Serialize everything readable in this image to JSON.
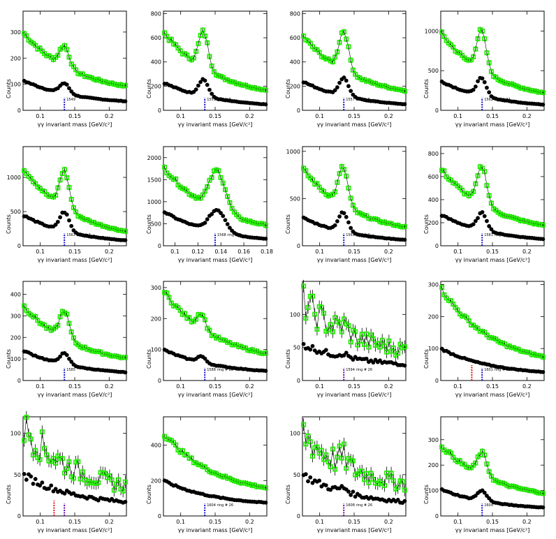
{
  "chart_data": [
    {
      "type": "scatter",
      "xlabel": "γγ invariant mass [GeV/c²]",
      "ylabel": "Counts",
      "xlim": [
        0.075,
        0.225
      ],
      "ylim": [
        0,
        380
      ],
      "xticks": [
        0.1,
        0.15,
        0.2
      ],
      "yticks": [
        0,
        100,
        200,
        300
      ],
      "peak": 0.135,
      "green": {
        "base": 300,
        "tail": 60,
        "amp": 80,
        "width": 0.007
      },
      "black": {
        "base": 115,
        "tail": 22,
        "amp": 40,
        "width": 0.007
      },
      "marker_label": "1549",
      "noisy": false,
      "red_marker": null
    },
    {
      "type": "scatter",
      "xlabel": "γγ invariant mass [GeV/c²]",
      "ylabel": "Counts",
      "xlim": [
        0.075,
        0.225
      ],
      "ylim": [
        0,
        820
      ],
      "xticks": [
        0.1,
        0.15,
        0.2
      ],
      "yticks": [
        0,
        200,
        400,
        600,
        800
      ],
      "peak": 0.133,
      "green": {
        "base": 650,
        "tail": 90,
        "amp": 300,
        "width": 0.007
      },
      "black": {
        "base": 230,
        "tail": 20,
        "amp": 140,
        "width": 0.007
      },
      "marker_label": "1555 ring # 0",
      "noisy": false,
      "red_marker": null
    },
    {
      "type": "scatter",
      "xlabel": "γγ invariant mass [GeV/c²]",
      "ylabel": "Counts",
      "xlim": [
        0.075,
        0.225
      ],
      "ylim": [
        0,
        820
      ],
      "xticks": [
        0.1,
        0.15,
        0.2
      ],
      "yticks": [
        0,
        200,
        400,
        600,
        800
      ],
      "peak": 0.135,
      "green": {
        "base": 620,
        "tail": 90,
        "amp": 330,
        "width": 0.007
      },
      "black": {
        "base": 240,
        "tail": 20,
        "amp": 150,
        "width": 0.007
      },
      "marker_label": "1557 ring # 9",
      "noisy": false,
      "red_marker": null
    },
    {
      "type": "scatter",
      "xlabel": "γγ invariant mass [GeV/c²]",
      "ylabel": "Counts",
      "xlim": [
        0.075,
        0.225
      ],
      "ylim": [
        0,
        1250
      ],
      "xticks": [
        0.1,
        0.15,
        0.2
      ],
      "yticks": [
        0,
        500,
        1000
      ],
      "peak": 0.134,
      "green": {
        "base": 980,
        "tail": 100,
        "amp": 500,
        "width": 0.007
      },
      "black": {
        "base": 370,
        "tail": 25,
        "amp": 220,
        "width": 0.007
      },
      "marker_label": "1562 ring # 11",
      "noisy": false,
      "red_marker": null
    },
    {
      "type": "scatter",
      "xlabel": "γγ invariant mass [GeV/c²]",
      "ylabel": "Counts",
      "xlim": [
        0.075,
        0.225
      ],
      "ylim": [
        0,
        1450
      ],
      "xticks": [
        0.1,
        0.15,
        0.2
      ],
      "yticks": [
        0,
        500,
        1000
      ],
      "peak": 0.135,
      "green": {
        "base": 1150,
        "tail": 60,
        "amp": 550,
        "width": 0.007
      },
      "black": {
        "base": 450,
        "tail": 20,
        "amp": 280,
        "width": 0.007
      },
      "marker_label": "1563 ring # 2",
      "noisy": false,
      "red_marker": null
    },
    {
      "type": "scatter",
      "xlabel": "γγ invariant mass [GeV/c²]",
      "ylabel": "Counts",
      "xlim": [
        0.09,
        0.18
      ],
      "ylim": [
        0,
        2250
      ],
      "xticks": [
        0.1,
        0.12,
        0.14,
        0.16,
        0.18
      ],
      "yticks": [
        0,
        500,
        1000,
        1500,
        2000
      ],
      "peak": 0.137,
      "green": {
        "base": 1800,
        "tail": 260,
        "amp": 900,
        "width": 0.007
      },
      "black": {
        "base": 780,
        "tail": 60,
        "amp": 500,
        "width": 0.007
      },
      "marker_label": "1568 ring # 2",
      "noisy": false,
      "red_marker": null
    },
    {
      "type": "scatter",
      "xlabel": "γγ invariant mass [GeV/c²]",
      "ylabel": "Counts",
      "xlim": [
        0.075,
        0.225
      ],
      "ylim": [
        0,
        1050
      ],
      "xticks": [
        0.1,
        0.15,
        0.2
      ],
      "yticks": [
        0,
        500,
        1000
      ],
      "peak": 0.134,
      "green": {
        "base": 820,
        "tail": 100,
        "amp": 400,
        "width": 0.007
      },
      "black": {
        "base": 300,
        "tail": 25,
        "amp": 200,
        "width": 0.007
      },
      "marker_label": "1569 ring # 9",
      "noisy": false,
      "red_marker": null
    },
    {
      "type": "scatter",
      "xlabel": "γγ invariant mass [GeV/c²]",
      "ylabel": "Counts",
      "xlim": [
        0.075,
        0.225
      ],
      "ylim": [
        0,
        860
      ],
      "xticks": [
        0.1,
        0.15,
        0.2
      ],
      "yticks": [
        0,
        200,
        400,
        600,
        800
      ],
      "peak": 0.135,
      "green": {
        "base": 670,
        "tail": 100,
        "amp": 330,
        "width": 0.007
      },
      "black": {
        "base": 270,
        "tail": 25,
        "amp": 150,
        "width": 0.007
      },
      "marker_label": "1581 ring # 14",
      "noisy": false,
      "red_marker": null
    },
    {
      "type": "scatter",
      "xlabel": "γγ invariant mass [GeV/c²]",
      "ylabel": "Counts",
      "xlim": [
        0.075,
        0.225
      ],
      "ylim": [
        0,
        460
      ],
      "xticks": [
        0.1,
        0.15,
        0.2
      ],
      "yticks": [
        0,
        100,
        200,
        300,
        400
      ],
      "peak": 0.135,
      "green": {
        "base": 350,
        "tail": 65,
        "amp": 130,
        "width": 0.007
      },
      "black": {
        "base": 140,
        "tail": 22,
        "amp": 50,
        "width": 0.007
      },
      "marker_label": "1585",
      "noisy": false,
      "red_marker": null
    },
    {
      "type": "scatter",
      "xlabel": "γγ invariant mass [GeV/c²]",
      "ylabel": "Counts",
      "xlim": [
        0.075,
        0.225
      ],
      "ylim": [
        0,
        320
      ],
      "xticks": [
        0.1,
        0.15,
        0.2
      ],
      "yticks": [
        0,
        100,
        200,
        300
      ],
      "peak": 0.13,
      "green": {
        "base": 290,
        "tail": 55,
        "amp": 50,
        "width": 0.006
      },
      "black": {
        "base": 100,
        "tail": 20,
        "amp": 20,
        "width": 0.006
      },
      "marker_label": "1588 ring # 26",
      "noisy": false,
      "red_marker": null
    },
    {
      "type": "scatter",
      "xlabel": "γγ invariant mass [GeV/c²]",
      "ylabel": "Counts",
      "xlim": [
        0.075,
        0.225
      ],
      "ylim": [
        0,
        150
      ],
      "xticks": [
        0.1,
        0.15,
        0.2
      ],
      "yticks": [
        0,
        50,
        100
      ],
      "peak": 0.135,
      "green": {
        "base": 120,
        "tail": 35,
        "amp": 10,
        "width": 0.006
      },
      "black": {
        "base": 55,
        "tail": 20,
        "amp": 5,
        "width": 0.006
      },
      "marker_label": "1594 ring # 26",
      "noisy": true,
      "red_marker": null
    },
    {
      "type": "scatter",
      "xlabel": "γγ invariant mass [GeV/c²]",
      "ylabel": "Counts",
      "xlim": [
        0.075,
        0.225
      ],
      "ylim": [
        0,
        310
      ],
      "xticks": [
        0.1,
        0.15,
        0.2
      ],
      "yticks": [
        0,
        100,
        200,
        300
      ],
      "peak": 0.135,
      "green": {
        "base": 290,
        "tail": 40,
        "amp": 0,
        "width": 0.006
      },
      "black": {
        "base": 100,
        "tail": 15,
        "amp": 0,
        "width": 0.006
      },
      "marker_label": "1601 ring # 21",
      "noisy": false,
      "red_marker": 0.12
    },
    {
      "type": "scatter",
      "xlabel": "γγ invariant mass [GeV/c²]",
      "ylabel": "Counts",
      "xlim": [
        0.075,
        0.225
      ],
      "ylim": [
        0,
        120
      ],
      "xticks": [
        0.1,
        0.15,
        0.2
      ],
      "yticks": [
        0,
        50,
        100
      ],
      "peak": 0.135,
      "green": {
        "base": 110,
        "tail": 25,
        "amp": 0,
        "width": 0.006
      },
      "black": {
        "base": 50,
        "tail": 12,
        "amp": 0,
        "width": 0.006
      },
      "marker_label": "",
      "noisy": true,
      "red_marker": 0.12
    },
    {
      "type": "scatter",
      "xlabel": "γγ invariant mass [GeV/c²]",
      "ylabel": "Counts",
      "xlim": [
        0.075,
        0.225
      ],
      "ylim": [
        0,
        560
      ],
      "xticks": [
        0.1,
        0.15,
        0.2
      ],
      "yticks": [
        0,
        200,
        400
      ],
      "peak": 0.135,
      "green": {
        "base": 470,
        "tail": 110,
        "amp": 0,
        "width": 0.006
      },
      "black": {
        "base": 200,
        "tail": 55,
        "amp": 0,
        "width": 0.006
      },
      "marker_label": "1604 ring # 26",
      "noisy": false,
      "red_marker": null
    },
    {
      "type": "scatter",
      "xlabel": "γγ invariant mass [GeV/c²]",
      "ylabel": "Counts",
      "xlim": [
        0.075,
        0.225
      ],
      "ylim": [
        0,
        120
      ],
      "xticks": [
        0.1,
        0.15,
        0.2
      ],
      "yticks": [
        0,
        50,
        100
      ],
      "peak": 0.135,
      "green": {
        "base": 100,
        "tail": 30,
        "amp": 10,
        "width": 0.006
      },
      "black": {
        "base": 50,
        "tail": 12,
        "amp": 5,
        "width": 0.006
      },
      "marker_label": "1608 ring # 26",
      "noisy": true,
      "red_marker": null
    },
    {
      "type": "scatter",
      "xlabel": "γγ invariant mass [GeV/c²]",
      "ylabel": "Counts",
      "xlim": [
        0.075,
        0.225
      ],
      "ylim": [
        0,
        390
      ],
      "xticks": [
        0.1,
        0.15,
        0.2
      ],
      "yticks": [
        0,
        100,
        200,
        300
      ],
      "peak": 0.135,
      "green": {
        "base": 280,
        "tail": 60,
        "amp": 90,
        "width": 0.007
      },
      "black": {
        "base": 105,
        "tail": 22,
        "amp": 40,
        "width": 0.007
      },
      "marker_label": "1609",
      "noisy": false,
      "red_marker": null
    }
  ],
  "colors": {
    "green": "#22ee00",
    "black": "#000000",
    "blue_marker": "#1010cc",
    "red_marker": "#dd1111",
    "purple_marker": "#6600aa"
  }
}
